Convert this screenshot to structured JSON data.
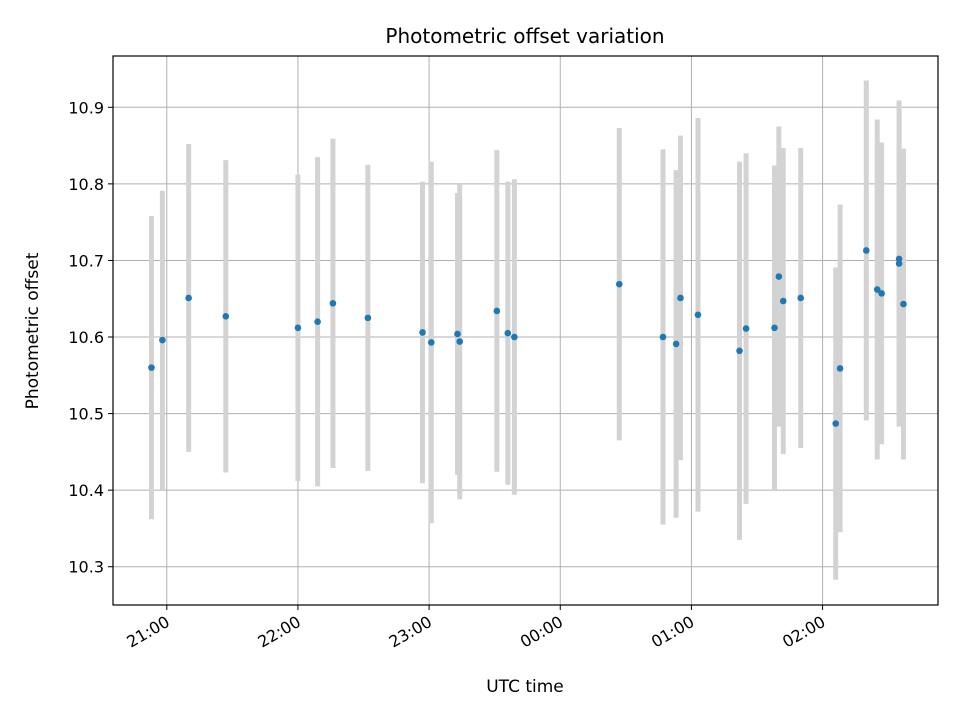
{
  "chart_data": {
    "type": "scatter",
    "title": "Photometric offset variation",
    "xlabel": "UTC time",
    "ylabel": "Photometric offset",
    "x_ticks": [
      "21:00",
      "22:00",
      "23:00",
      "00:00",
      "01:00",
      "02:00"
    ],
    "y_ticks": [
      "10.3",
      "10.4",
      "10.5",
      "10.6",
      "10.7",
      "10.8",
      "10.9"
    ],
    "xlim_hours": [
      20.59,
      26.88
    ],
    "ylim": [
      10.25,
      10.967
    ],
    "grid": true,
    "colors": {
      "marker": "#1f77b4",
      "errorbar": "#d3d3d3",
      "grid": "#b0b0b0"
    },
    "series": [
      {
        "points": [
          {
            "t": "20:53",
            "y": 10.56,
            "err": 0.198
          },
          {
            "t": "20:58",
            "y": 10.596,
            "err": 0.195
          },
          {
            "t": "21:10",
            "y": 10.651,
            "err": 0.201
          },
          {
            "t": "21:27",
            "y": 10.627,
            "err": 0.204
          },
          {
            "t": "22:00",
            "y": 10.612,
            "err": 0.2
          },
          {
            "t": "22:09",
            "y": 10.62,
            "err": 0.215
          },
          {
            "t": "22:16",
            "y": 10.644,
            "err": 0.215
          },
          {
            "t": "22:32",
            "y": 10.625,
            "err": 0.2
          },
          {
            "t": "22:57",
            "y": 10.606,
            "err": 0.197
          },
          {
            "t": "23:01",
            "y": 10.593,
            "err": 0.236
          },
          {
            "t": "23:13",
            "y": 10.604,
            "err": 0.184
          },
          {
            "t": "23:14",
            "y": 10.594,
            "err": 0.206
          },
          {
            "t": "23:31",
            "y": 10.634,
            "err": 0.21
          },
          {
            "t": "23:36",
            "y": 10.605,
            "err": 0.198
          },
          {
            "t": "23:39",
            "y": 10.6,
            "err": 0.206
          },
          {
            "t": "00:27",
            "y": 10.669,
            "err": 0.204
          },
          {
            "t": "00:47",
            "y": 10.6,
            "err": 0.245
          },
          {
            "t": "00:53",
            "y": 10.591,
            "err": 0.227
          },
          {
            "t": "00:55",
            "y": 10.651,
            "err": 0.212
          },
          {
            "t": "01:03",
            "y": 10.629,
            "err": 0.257
          },
          {
            "t": "01:22",
            "y": 10.582,
            "err": 0.247
          },
          {
            "t": "01:25",
            "y": 10.611,
            "err": 0.229
          },
          {
            "t": "01:38",
            "y": 10.612,
            "err": 0.212
          },
          {
            "t": "01:40",
            "y": 10.679,
            "err": 0.196
          },
          {
            "t": "01:42",
            "y": 10.647,
            "err": 0.2
          },
          {
            "t": "01:50",
            "y": 10.651,
            "err": 0.196
          },
          {
            "t": "02:06",
            "y": 10.487,
            "err": 0.204
          },
          {
            "t": "02:08",
            "y": 10.559,
            "err": 0.214
          },
          {
            "t": "02:20",
            "y": 10.713,
            "err": 0.222
          },
          {
            "t": "02:25",
            "y": 10.662,
            "err": 0.222
          },
          {
            "t": "02:27",
            "y": 10.657,
            "err": 0.197
          },
          {
            "t": "02:35",
            "y": 10.696,
            "err": 0.213
          },
          {
            "t": "02:35",
            "y": 10.702,
            "err": 0.204
          },
          {
            "t": "02:37",
            "y": 10.643,
            "err": 0.203
          }
        ]
      }
    ]
  }
}
